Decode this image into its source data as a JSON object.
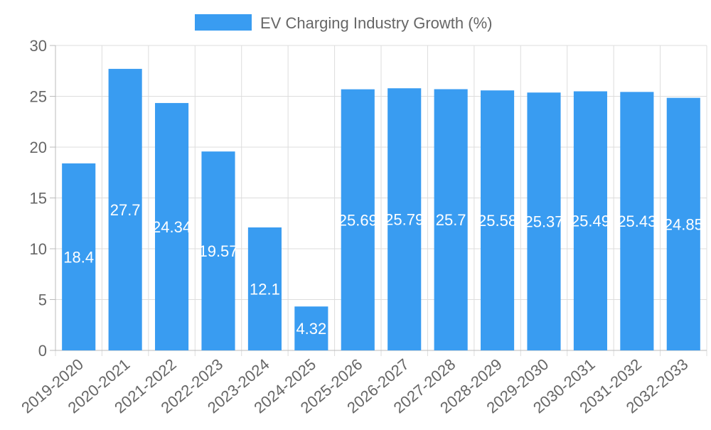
{
  "chart_data": {
    "type": "bar",
    "title": "",
    "xlabel": "",
    "ylabel": "",
    "ylim": [
      0,
      30
    ],
    "yticks": [
      0,
      5,
      10,
      15,
      20,
      25,
      30
    ],
    "grid": true,
    "legend_position": "top-center",
    "categories": [
      "2019-2020",
      "2020-2021",
      "2021-2022",
      "2022-2023",
      "2023-2024",
      "2024-2025",
      "2025-2026",
      "2026-2027",
      "2027-2028",
      "2028-2029",
      "2029-2030",
      "2030-2031",
      "2031-2032",
      "2032-2033"
    ],
    "series": [
      {
        "name": "EV Charging Industry Growth (%)",
        "color": "#399cf1",
        "values": [
          18.4,
          27.7,
          24.34,
          19.57,
          12.1,
          4.32,
          25.69,
          25.79,
          25.7,
          25.58,
          25.37,
          25.49,
          25.43,
          24.85
        ],
        "data_labels": [
          "18.4",
          "27.7",
          "24.34",
          "19.57",
          "12.1",
          "4.32",
          "25.69",
          "25.79",
          "25.7",
          "25.58",
          "25.37",
          "25.49",
          "25.43",
          "24.85"
        ]
      }
    ]
  }
}
